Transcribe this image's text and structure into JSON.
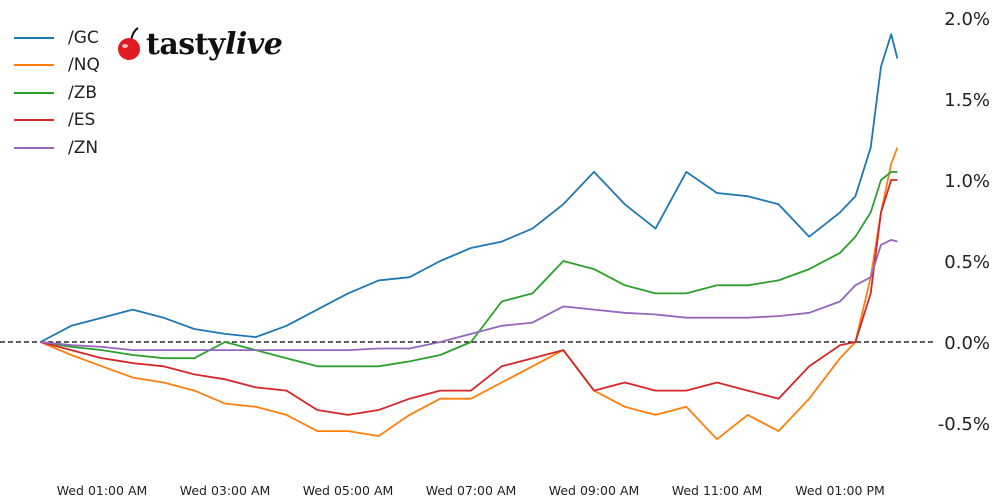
{
  "chart_data": {
    "type": "line",
    "title": "",
    "xlabel": "",
    "ylabel": "",
    "y_axis_side": "right",
    "ylim": [
      -0.75,
      2.0
    ],
    "y_ticks": [
      -0.5,
      0.0,
      0.5,
      1.0,
      1.5,
      2.0
    ],
    "y_tick_labels": [
      "-0.5%",
      "0.0%",
      "0.5%",
      "1.0%",
      "1.5%",
      "2.0%"
    ],
    "x_ticks": [
      "01:00",
      "03:00",
      "05:00",
      "07:00",
      "09:00",
      "11:00",
      "13:00"
    ],
    "x_tick_labels": [
      "Wed 01:00 AM",
      "Wed 03:00 AM",
      "Wed 05:00 AM",
      "Wed 07:00 AM",
      "Wed 09:00 AM",
      "Wed 11:00 AM",
      "Wed 01:00 PM"
    ],
    "xlim": [
      "00:00",
      "14:10"
    ],
    "grid": false,
    "reference_line": {
      "y": 0.0,
      "style": "dashed",
      "color": "#000000"
    },
    "legend_placement": "top-left",
    "x": [
      "00:00",
      "00:30",
      "01:00",
      "01:30",
      "02:00",
      "02:30",
      "03:00",
      "03:30",
      "04:00",
      "04:30",
      "05:00",
      "05:30",
      "06:00",
      "06:30",
      "07:00",
      "07:30",
      "08:00",
      "08:30",
      "09:00",
      "09:30",
      "10:00",
      "10:30",
      "11:00",
      "11:30",
      "12:00",
      "12:30",
      "13:00",
      "13:15",
      "13:30",
      "13:40",
      "13:50",
      "13:56"
    ],
    "series": [
      {
        "name": "/GC",
        "color": "#1f77b4",
        "values": [
          0,
          0.1,
          0.15,
          0.2,
          0.15,
          0.08,
          0.05,
          0.03,
          0.1,
          0.2,
          0.3,
          0.38,
          0.4,
          0.5,
          0.58,
          0.62,
          0.7,
          0.85,
          1.05,
          0.85,
          0.7,
          1.05,
          0.92,
          0.9,
          0.85,
          0.65,
          0.8,
          0.9,
          1.2,
          1.7,
          1.9,
          1.75
        ]
      },
      {
        "name": "/NQ",
        "color": "#ff7f0e",
        "values": [
          0,
          -0.08,
          -0.15,
          -0.22,
          -0.25,
          -0.3,
          -0.38,
          -0.4,
          -0.45,
          -0.55,
          -0.55,
          -0.58,
          -0.45,
          -0.35,
          -0.35,
          -0.25,
          -0.15,
          -0.05,
          -0.3,
          -0.4,
          -0.45,
          -0.4,
          -0.6,
          -0.45,
          -0.55,
          -0.35,
          -0.1,
          0.0,
          0.4,
          0.8,
          1.1,
          1.2
        ]
      },
      {
        "name": "/ZB",
        "color": "#2ca02c",
        "values": [
          0,
          -0.03,
          -0.05,
          -0.08,
          -0.1,
          -0.1,
          0.0,
          -0.05,
          -0.1,
          -0.15,
          -0.15,
          -0.15,
          -0.12,
          -0.08,
          0.0,
          0.25,
          0.3,
          0.5,
          0.45,
          0.35,
          0.3,
          0.3,
          0.35,
          0.35,
          0.38,
          0.45,
          0.55,
          0.65,
          0.8,
          1.0,
          1.05,
          1.05
        ]
      },
      {
        "name": "/ES",
        "color": "#d62728",
        "values": [
          0,
          -0.05,
          -0.1,
          -0.13,
          -0.15,
          -0.2,
          -0.23,
          -0.28,
          -0.3,
          -0.42,
          -0.45,
          -0.42,
          -0.35,
          -0.3,
          -0.3,
          -0.15,
          -0.1,
          -0.05,
          -0.3,
          -0.25,
          -0.3,
          -0.3,
          -0.25,
          -0.3,
          -0.35,
          -0.15,
          -0.02,
          0.0,
          0.3,
          0.8,
          1.0,
          1.0
        ]
      },
      {
        "name": "/ZN",
        "color": "#9467bd",
        "values": [
          0,
          -0.02,
          -0.03,
          -0.05,
          -0.05,
          -0.05,
          -0.05,
          -0.05,
          -0.05,
          -0.05,
          -0.05,
          -0.04,
          -0.04,
          0.0,
          0.05,
          0.1,
          0.12,
          0.22,
          0.2,
          0.18,
          0.17,
          0.15,
          0.15,
          0.15,
          0.16,
          0.18,
          0.25,
          0.35,
          0.4,
          0.6,
          0.63,
          0.62
        ]
      }
    ]
  },
  "logo": {
    "text_main": "tasty",
    "text_italic": "live",
    "cherry_color": "#e01b24"
  }
}
